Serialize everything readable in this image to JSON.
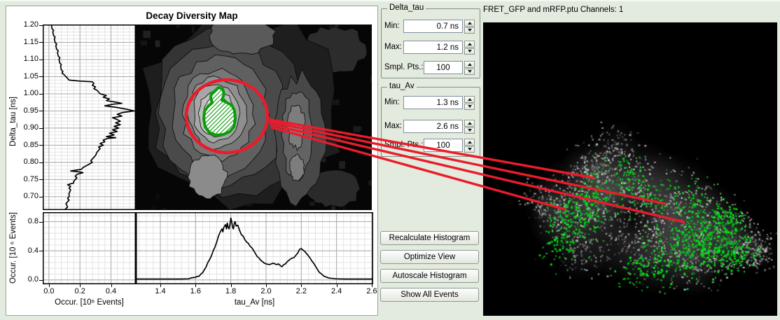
{
  "window": {
    "background": "#e3eade"
  },
  "panel": {
    "title": "Decay Diversity Map",
    "delta_tau_axis_label": "Delta_tau [ns]",
    "occur_vertical_axis_label": "Occur. [10 ⁶ Events]",
    "occur_horizontal_axis_label": "Occur. [10⁶ Events]",
    "tau_av_axis_label": "tau_Av [ns]"
  },
  "header": {
    "title": "FRET_GFP and mRFP.ptu Channels: 1"
  },
  "controls": {
    "groups": [
      {
        "title": "Delta_tau",
        "rows": [
          {
            "label": "Min:",
            "value": "0.7 ns"
          },
          {
            "label": "Max:",
            "value": "1.2 ns"
          },
          {
            "label": "Smpl. Pts.:",
            "value": "100"
          }
        ]
      },
      {
        "title": "tau_Av",
        "rows": [
          {
            "label": "Min:",
            "value": "1.3 ns"
          },
          {
            "label": "Max:",
            "value": "2.6 ns"
          },
          {
            "label": "Smpl. Pts.:",
            "value": "100"
          }
        ]
      }
    ],
    "buttons": [
      {
        "label": "Recalculate Histogram"
      },
      {
        "label": "Optimize View"
      },
      {
        "label": "Autoscale Histogram"
      },
      {
        "label": "Show All Events"
      }
    ]
  },
  "annotations": {
    "roi_color": "#0a9c0a",
    "circle_color": "#ea1c2c",
    "link_line_color": "#ea1c2c"
  },
  "chart_data": [
    {
      "type": "line",
      "name": "delta_tau_marginal_histogram",
      "orientation": "vertical",
      "ylabel": "Delta_tau [ns]",
      "xlabel": "Occur. [10⁶ Events]",
      "xlim": [
        -0.04,
        0.56
      ],
      "ylim": [
        0.661,
        1.202
      ],
      "x_ticks": [
        0.0,
        0.2,
        0.4
      ],
      "y_ticks": [
        0.7,
        0.75,
        0.8,
        0.85,
        0.9,
        0.95,
        1.0,
        1.05,
        1.1,
        1.15,
        1.2
      ],
      "grid": true,
      "points_delta_tau_vs_occurrence": [
        [
          1.202,
          0.015
        ],
        [
          1.19,
          0.02
        ],
        [
          1.185,
          0.03
        ],
        [
          1.18,
          0.025
        ],
        [
          1.17,
          0.03
        ],
        [
          1.165,
          0.04
        ],
        [
          1.16,
          0.035
        ],
        [
          1.15,
          0.04
        ],
        [
          1.145,
          0.05
        ],
        [
          1.14,
          0.045
        ],
        [
          1.13,
          0.05
        ],
        [
          1.125,
          0.06
        ],
        [
          1.12,
          0.055
        ],
        [
          1.11,
          0.06
        ],
        [
          1.105,
          0.07
        ],
        [
          1.1,
          0.065
        ],
        [
          1.09,
          0.07
        ],
        [
          1.085,
          0.08
        ],
        [
          1.08,
          0.075
        ],
        [
          1.07,
          0.08
        ],
        [
          1.065,
          0.09
        ],
        [
          1.06,
          0.085
        ],
        [
          1.055,
          0.1
        ],
        [
          1.05,
          0.11
        ],
        [
          1.045,
          0.12
        ],
        [
          1.04,
          0.13
        ],
        [
          1.037,
          0.2
        ],
        [
          1.035,
          0.28
        ],
        [
          1.03,
          0.29
        ],
        [
          1.025,
          0.28
        ],
        [
          1.02,
          0.3
        ],
        [
          1.015,
          0.29
        ],
        [
          1.01,
          0.31
        ],
        [
          1.005,
          0.32
        ],
        [
          1.0,
          0.33
        ],
        [
          0.995,
          0.37
        ],
        [
          0.99,
          0.35
        ],
        [
          0.985,
          0.39
        ],
        [
          0.98,
          0.37
        ],
        [
          0.975,
          0.44
        ],
        [
          0.972,
          0.47
        ],
        [
          0.97,
          0.42
        ],
        [
          0.965,
          0.36
        ],
        [
          0.96,
          0.44
        ],
        [
          0.955,
          0.5
        ],
        [
          0.95,
          0.55
        ],
        [
          0.945,
          0.47
        ],
        [
          0.94,
          0.44
        ],
        [
          0.935,
          0.47
        ],
        [
          0.93,
          0.41
        ],
        [
          0.925,
          0.44
        ],
        [
          0.92,
          0.46
        ],
        [
          0.915,
          0.43
        ],
        [
          0.91,
          0.46
        ],
        [
          0.905,
          0.42
        ],
        [
          0.9,
          0.45
        ],
        [
          0.895,
          0.41
        ],
        [
          0.89,
          0.44
        ],
        [
          0.885,
          0.39
        ],
        [
          0.88,
          0.42
        ],
        [
          0.875,
          0.37
        ],
        [
          0.872,
          0.43
        ],
        [
          0.87,
          0.38
        ],
        [
          0.865,
          0.35
        ],
        [
          0.86,
          0.36
        ],
        [
          0.855,
          0.33
        ],
        [
          0.85,
          0.35
        ],
        [
          0.845,
          0.32
        ],
        [
          0.84,
          0.33
        ],
        [
          0.83,
          0.31
        ],
        [
          0.82,
          0.3
        ],
        [
          0.81,
          0.28
        ],
        [
          0.805,
          0.27
        ],
        [
          0.8,
          0.28
        ],
        [
          0.795,
          0.26
        ],
        [
          0.79,
          0.24
        ],
        [
          0.785,
          0.22
        ],
        [
          0.78,
          0.21
        ],
        [
          0.775,
          0.14
        ],
        [
          0.772,
          0.2
        ],
        [
          0.77,
          0.22
        ],
        [
          0.765,
          0.18
        ],
        [
          0.76,
          0.17
        ],
        [
          0.755,
          0.18
        ],
        [
          0.75,
          0.17
        ],
        [
          0.745,
          0.16
        ],
        [
          0.74,
          0.16
        ],
        [
          0.735,
          0.12
        ],
        [
          0.73,
          0.14
        ],
        [
          0.725,
          0.13
        ],
        [
          0.72,
          0.14
        ],
        [
          0.71,
          0.13
        ],
        [
          0.7,
          0.13
        ],
        [
          0.695,
          0.12
        ],
        [
          0.69,
          0.13
        ],
        [
          0.68,
          0.11
        ],
        [
          0.67,
          0.12
        ],
        [
          0.661,
          0.1
        ]
      ]
    },
    {
      "type": "line",
      "name": "tau_av_marginal_histogram",
      "orientation": "horizontal",
      "xlabel": "tau_Av [ns]",
      "ylabel": "Occur. [10⁶ Events]",
      "xlim": [
        1.261,
        2.608
      ],
      "ylim": [
        -0.06,
        0.93
      ],
      "x_ticks": [
        1.4,
        1.6,
        1.8,
        2.0,
        2.2,
        2.4,
        2.6
      ],
      "y_ticks": [
        0.0,
        0.4,
        0.8
      ],
      "grid": true,
      "points_tau_av_vs_occurrence": [
        [
          1.261,
          0.012
        ],
        [
          1.35,
          0.012
        ],
        [
          1.45,
          0.012
        ],
        [
          1.52,
          0.012
        ],
        [
          1.56,
          0.015
        ],
        [
          1.58,
          0.03
        ],
        [
          1.6,
          0.035
        ],
        [
          1.61,
          0.05
        ],
        [
          1.62,
          0.05
        ],
        [
          1.63,
          0.08
        ],
        [
          1.64,
          0.1
        ],
        [
          1.65,
          0.14
        ],
        [
          1.66,
          0.18
        ],
        [
          1.67,
          0.24
        ],
        [
          1.68,
          0.28
        ],
        [
          1.69,
          0.33
        ],
        [
          1.7,
          0.4
        ],
        [
          1.71,
          0.45
        ],
        [
          1.72,
          0.52
        ],
        [
          1.73,
          0.6
        ],
        [
          1.74,
          0.66
        ],
        [
          1.75,
          0.7
        ],
        [
          1.755,
          0.66
        ],
        [
          1.76,
          0.72
        ],
        [
          1.77,
          0.76
        ],
        [
          1.775,
          0.7
        ],
        [
          1.78,
          0.78
        ],
        [
          1.785,
          0.72
        ],
        [
          1.79,
          0.7
        ],
        [
          1.795,
          0.76
        ],
        [
          1.8,
          0.85
        ],
        [
          1.805,
          0.8
        ],
        [
          1.81,
          0.72
        ],
        [
          1.815,
          0.7
        ],
        [
          1.82,
          0.78
        ],
        [
          1.825,
          0.8
        ],
        [
          1.83,
          0.74
        ],
        [
          1.84,
          0.75
        ],
        [
          1.85,
          0.68
        ],
        [
          1.86,
          0.62
        ],
        [
          1.87,
          0.6
        ],
        [
          1.88,
          0.55
        ],
        [
          1.89,
          0.52
        ],
        [
          1.9,
          0.5
        ],
        [
          1.91,
          0.46
        ],
        [
          1.92,
          0.44
        ],
        [
          1.93,
          0.4
        ],
        [
          1.94,
          0.36
        ],
        [
          1.95,
          0.32
        ],
        [
          1.96,
          0.3
        ],
        [
          1.97,
          0.27
        ],
        [
          1.98,
          0.25
        ],
        [
          1.99,
          0.23
        ],
        [
          2.0,
          0.22
        ],
        [
          2.02,
          0.21
        ],
        [
          2.04,
          0.23
        ],
        [
          2.06,
          0.21
        ],
        [
          2.07,
          0.22
        ],
        [
          2.08,
          0.2
        ],
        [
          2.09,
          0.18
        ],
        [
          2.1,
          0.21
        ],
        [
          2.11,
          0.22
        ],
        [
          2.12,
          0.25
        ],
        [
          2.14,
          0.29
        ],
        [
          2.15,
          0.3
        ],
        [
          2.16,
          0.31
        ],
        [
          2.17,
          0.34
        ],
        [
          2.18,
          0.37
        ],
        [
          2.19,
          0.42
        ],
        [
          2.2,
          0.43
        ],
        [
          2.21,
          0.41
        ],
        [
          2.22,
          0.39
        ],
        [
          2.23,
          0.36
        ],
        [
          2.24,
          0.33
        ],
        [
          2.25,
          0.3
        ],
        [
          2.26,
          0.26
        ],
        [
          2.27,
          0.23
        ],
        [
          2.28,
          0.19
        ],
        [
          2.29,
          0.15
        ],
        [
          2.3,
          0.11
        ],
        [
          2.31,
          0.09
        ],
        [
          2.32,
          0.07
        ],
        [
          2.33,
          0.05
        ],
        [
          2.34,
          0.04
        ],
        [
          2.35,
          0.03
        ],
        [
          2.36,
          0.025
        ],
        [
          2.38,
          0.02
        ],
        [
          2.4,
          0.015
        ],
        [
          2.45,
          0.012
        ],
        [
          2.5,
          0.012
        ],
        [
          2.608,
          0.012
        ]
      ]
    },
    {
      "type": "heatmap",
      "name": "decay_diversity_map_2d",
      "title": "Decay Diversity Map",
      "x_axis": "tau_Av [ns]",
      "y_axis": "Delta_tau [ns]",
      "xlim": [
        1.261,
        2.608
      ],
      "ylim": [
        0.661,
        1.202
      ],
      "style": "grayscale density with black contour lines",
      "main_peak": {
        "tau_av_ns": 1.8,
        "delta_tau_ns": 0.95
      },
      "secondary_ridge": {
        "tau_av_ns": 2.2,
        "delta_tau_range_ns": [
          0.72,
          1.1
        ]
      },
      "selection_roi": {
        "shape": "freehand-hatched",
        "center_tau_av_ns": 1.81,
        "center_delta_tau_ns": 0.95
      },
      "selection_circle": {
        "center_tau_av_ns": 1.86,
        "center_delta_tau_ns": 0.94
      }
    }
  ]
}
